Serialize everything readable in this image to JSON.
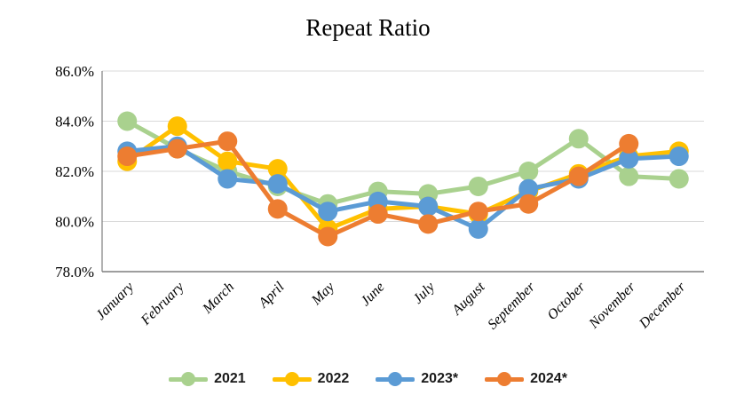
{
  "chart_data": {
    "type": "line",
    "title": "Repeat Ratio",
    "categories": [
      "January",
      "February",
      "March",
      "April",
      "May",
      "June",
      "July",
      "August",
      "September",
      "October",
      "November",
      "December"
    ],
    "y_axis": {
      "min": 78.0,
      "max": 86.0,
      "step": 2.0,
      "tick_labels": [
        "78.0%",
        "80.0%",
        "82.0%",
        "84.0%",
        "86.0%"
      ]
    },
    "grid": true,
    "legend_position": "bottom",
    "series": [
      {
        "name": "2021",
        "color": "#A9D18E",
        "values": [
          84.0,
          82.9,
          82.0,
          81.4,
          80.7,
          81.2,
          81.1,
          81.4,
          82.0,
          83.3,
          81.8,
          81.7
        ]
      },
      {
        "name": "2022",
        "color": "#FFC000",
        "values": [
          82.4,
          83.8,
          82.4,
          82.1,
          79.7,
          80.5,
          80.6,
          80.3,
          81.2,
          81.9,
          82.6,
          82.8
        ]
      },
      {
        "name": "2023*",
        "color": "#5B9BD5",
        "values": [
          82.8,
          83.0,
          81.7,
          81.5,
          80.4,
          80.8,
          80.6,
          79.7,
          81.3,
          81.7,
          82.5,
          82.6
        ]
      },
      {
        "name": "2024*",
        "color": "#ED7D31",
        "values": [
          82.6,
          82.9,
          83.2,
          80.5,
          79.4,
          80.3,
          79.9,
          80.4,
          80.7,
          81.8,
          83.1,
          null
        ]
      }
    ],
    "style": {
      "gridline_color": "#D9D9D9",
      "axis_color": "#7F7F7F",
      "line_width": 5,
      "marker_radius": 11
    }
  }
}
